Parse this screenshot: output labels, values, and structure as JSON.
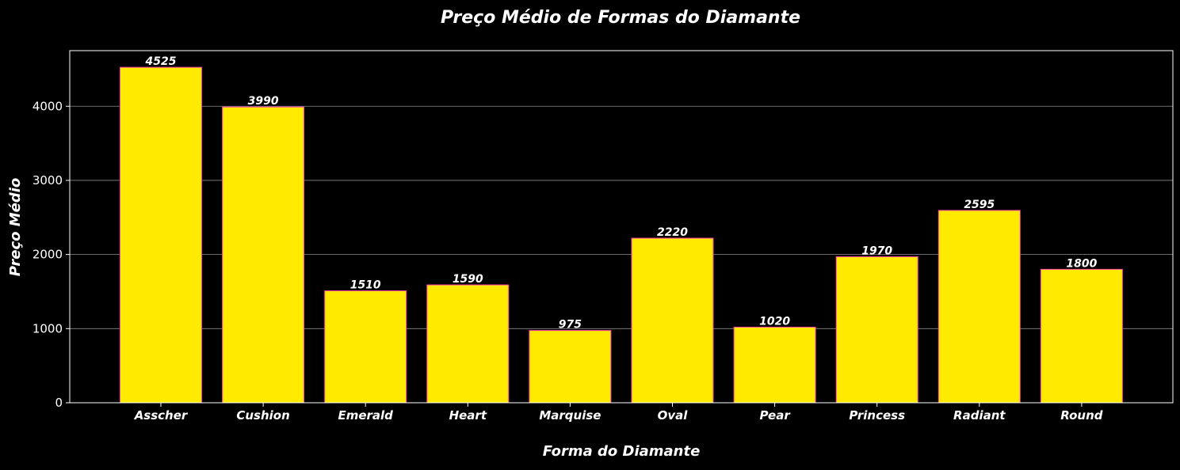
{
  "chart_data": {
    "type": "bar",
    "title": "Preço Médio de Formas do Diamante",
    "xlabel": "Forma do Diamante",
    "ylabel": "Preço Médio",
    "categories": [
      "Asscher",
      "Cushion",
      "Emerald",
      "Heart",
      "Marquise",
      "Oval",
      "Pear",
      "Princess",
      "Radiant",
      "Round"
    ],
    "values": [
      4525,
      3990,
      1510,
      1590,
      975,
      2220,
      1020,
      1970,
      2595,
      1800
    ],
    "value_labels": [
      "4525",
      "3990",
      "1510",
      "1590",
      "975",
      "2220",
      "1020",
      "1970",
      "2595",
      "1800"
    ],
    "ylim": [
      0,
      4750
    ],
    "yticks": [
      0,
      1000,
      2000,
      3000,
      4000
    ],
    "ytick_labels": [
      "0",
      "1000",
      "2000",
      "3000",
      "4000"
    ],
    "grid": "horizontal",
    "legend": "none",
    "colors": {
      "background": "#000000",
      "bar_fill": "#ffea00",
      "bar_edge": "#ff3fb0",
      "grid": "#8c8c8c",
      "axes": "#ffffff",
      "text": "#ffffff"
    }
  }
}
